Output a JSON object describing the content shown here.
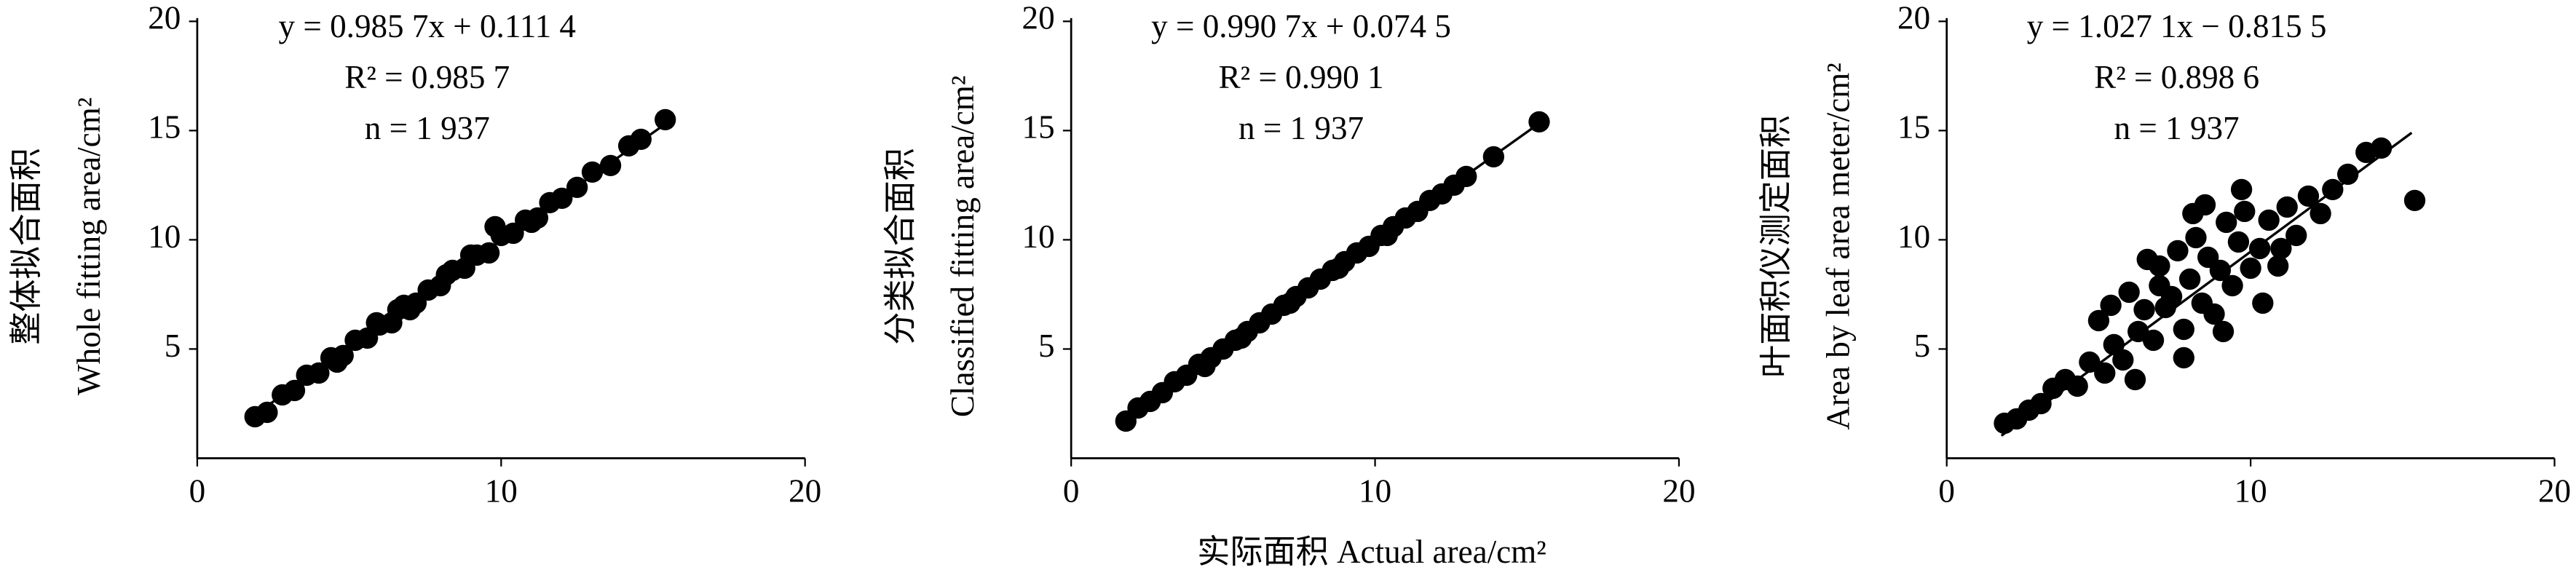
{
  "chart_data": [
    {
      "type": "scatter",
      "ylabel": [
        "整体拟合面积",
        "Whole fitting area/cm²"
      ],
      "annotations": [
        "y = 0.985 7x + 0.111 4",
        "R² = 0.985 7",
        "n = 1 937"
      ],
      "xlim": [
        0,
        20
      ],
      "xticks": [
        0,
        10,
        20
      ],
      "ylim": [
        0,
        20
      ],
      "yticks": [
        5,
        10,
        15,
        20
      ],
      "color": "#000000",
      "x": [
        1.9,
        2.3,
        2.8,
        3.2,
        3.6,
        4.0,
        4.4,
        4.8,
        5.2,
        5.6,
        6.0,
        6.4,
        6.8,
        7.2,
        7.6,
        8.0,
        8.4,
        8.8,
        9.2,
        9.6,
        10.0,
        10.4,
        10.8,
        11.2,
        11.6,
        12.0,
        12.5,
        13.0,
        13.6,
        14.2,
        14.6,
        15.4,
        4.6,
        5.9,
        7.0,
        8.2,
        9.0,
        9.8,
        6.6,
        11.0
      ],
      "y": [
        1.9,
        2.1,
        2.9,
        3.1,
        3.8,
        3.9,
        4.6,
        4.7,
        5.4,
        5.5,
        6.1,
        6.2,
        7.0,
        7.1,
        7.7,
        7.9,
        8.6,
        8.7,
        9.3,
        9.4,
        10.2,
        10.3,
        10.9,
        11.0,
        11.7,
        11.9,
        12.4,
        13.1,
        13.4,
        14.3,
        14.6,
        15.5,
        4.4,
        6.2,
        6.8,
        8.4,
        9.3,
        10.6,
        6.8,
        10.8
      ],
      "fit_line": {
        "x": [
          1.9,
          15.4
        ],
        "y": [
          2.0,
          15.3
        ]
      }
    },
    {
      "type": "scatter",
      "ylabel": [
        "分类拟合面积",
        "Classified fitting area/cm²"
      ],
      "annotations": [
        "y = 0.990 7x + 0.074 5",
        "R² = 0.990 1",
        "n = 1 937"
      ],
      "xlim": [
        0,
        20
      ],
      "xticks": [
        0,
        10,
        20
      ],
      "ylim": [
        0,
        20
      ],
      "yticks": [
        5,
        10,
        15,
        20
      ],
      "color": "#000000",
      "x": [
        1.8,
        2.2,
        2.6,
        3.0,
        3.4,
        3.8,
        4.2,
        4.6,
        5.0,
        5.4,
        5.8,
        6.2,
        6.6,
        7.0,
        7.4,
        7.8,
        8.2,
        8.6,
        9.0,
        9.4,
        9.8,
        10.2,
        10.6,
        11.0,
        11.4,
        11.8,
        12.2,
        12.6,
        13.0,
        13.9,
        15.4,
        4.4,
        5.6,
        7.2,
        8.8,
        10.4
      ],
      "y": [
        1.7,
        2.3,
        2.6,
        3.0,
        3.5,
        3.8,
        4.3,
        4.6,
        5.0,
        5.4,
        5.8,
        6.2,
        6.6,
        7.0,
        7.4,
        7.8,
        8.2,
        8.6,
        9.0,
        9.4,
        9.7,
        10.2,
        10.6,
        11.0,
        11.3,
        11.8,
        12.1,
        12.5,
        12.9,
        13.8,
        15.4,
        4.2,
        5.5,
        7.1,
        8.7,
        10.2
      ],
      "fit_line": {
        "x": [
          1.8,
          15.4
        ],
        "y": [
          1.86,
          15.33
        ]
      }
    },
    {
      "type": "scatter",
      "ylabel": [
        "叶面积仪测定面积",
        "Area by leaf area meter/cm²"
      ],
      "annotations": [
        "y = 1.027 1x − 0.815 5",
        "R² = 0.898 6",
        "n = 1 937"
      ],
      "xlim": [
        0,
        20
      ],
      "xticks": [
        0,
        10,
        20
      ],
      "ylim": [
        0,
        20
      ],
      "yticks": [
        5,
        10,
        15,
        20
      ],
      "color": "#000000",
      "x": [
        1.9,
        2.3,
        2.7,
        3.1,
        3.5,
        3.9,
        4.3,
        4.7,
        5.0,
        5.2,
        5.5,
        5.8,
        6.0,
        6.3,
        6.5,
        6.8,
        7.0,
        7.2,
        7.4,
        7.6,
        7.8,
        8.0,
        8.2,
        8.4,
        8.6,
        8.8,
        9.0,
        9.2,
        9.4,
        9.6,
        9.8,
        10.0,
        10.3,
        10.6,
        10.9,
        11.2,
        11.5,
        11.9,
        12.3,
        12.7,
        13.2,
        13.8,
        14.3,
        15.4,
        5.4,
        6.2,
        7.0,
        7.8,
        8.5,
        9.1,
        9.7,
        10.4,
        11.0,
        6.6,
        8.1
      ],
      "y": [
        1.6,
        1.8,
        2.2,
        2.5,
        3.2,
        3.6,
        3.3,
        4.4,
        6.3,
        3.9,
        5.2,
        4.5,
        7.6,
        5.8,
        6.8,
        5.4,
        8.8,
        6.9,
        7.4,
        9.5,
        5.9,
        8.2,
        10.1,
        7.1,
        9.2,
        6.6,
        8.6,
        10.8,
        7.9,
        9.9,
        11.3,
        8.7,
        9.6,
        10.9,
        8.8,
        11.5,
        10.2,
        12.0,
        11.2,
        12.3,
        13.0,
        14.0,
        14.2,
        11.8,
        7.0,
        3.6,
        7.9,
        4.6,
        11.6,
        5.8,
        12.3,
        7.1,
        9.6,
        9.1,
        11.2
      ],
      "fit_line": {
        "x": [
          1.8,
          15.3
        ],
        "y": [
          1.03,
          14.9
        ]
      }
    }
  ],
  "shared_xlabel": "实际面积  Actual area/cm²"
}
